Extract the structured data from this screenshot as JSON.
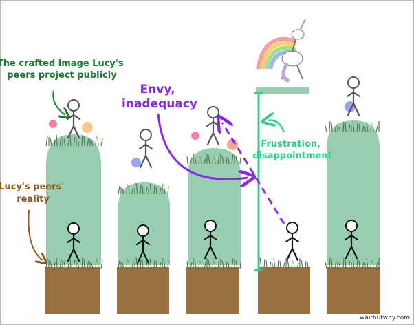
{
  "annotations": {
    "crafted_image": [
      "The crafted image Lucy's",
      "peers project publicly"
    ],
    "envy": [
      "Envy,",
      "inadequacy"
    ],
    "frustration": [
      "Frustration,",
      "disappointment"
    ],
    "reality": [
      "Lucy's peers'",
      "reality"
    ]
  },
  "watermark": "waitbutwhy.com"
}
